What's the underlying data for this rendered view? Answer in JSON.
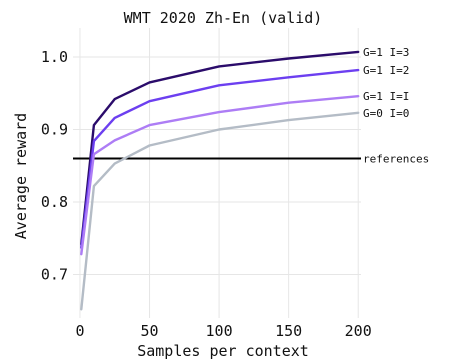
{
  "chart_data": {
    "type": "line",
    "title": "WMT 2020 Zh-En (valid)",
    "xlabel": "Samples per context",
    "ylabel": "Average reward",
    "x": [
      1,
      10,
      25,
      50,
      100,
      150,
      200
    ],
    "xlim": [
      -5,
      202
    ],
    "ylim": [
      0.64,
      1.04
    ],
    "xticks": [
      0,
      50,
      100,
      150,
      200
    ],
    "yticks": [
      0.7,
      0.8,
      0.9,
      1.0
    ],
    "xtick_labels": [
      "0",
      "50",
      "100",
      "150",
      "200"
    ],
    "ytick_labels": [
      "0.7",
      "0.8",
      "0.9",
      "1.0"
    ],
    "grid": true,
    "series": [
      {
        "name": "G=1 I=3",
        "color": "#2b0c6b",
        "values": [
          0.742,
          0.906,
          0.942,
          0.965,
          0.987,
          0.998,
          1.007
        ]
      },
      {
        "name": "G=1 I=2",
        "color": "#6c3ff0",
        "values": [
          0.737,
          0.884,
          0.916,
          0.939,
          0.961,
          0.972,
          0.982
        ]
      },
      {
        "name": "G=1 I=I",
        "color": "#ad7df5",
        "values": [
          0.728,
          0.866,
          0.885,
          0.906,
          0.924,
          0.937,
          0.946
        ]
      },
      {
        "name": "G=0 I=0",
        "color": "#b4bcc6",
        "values": [
          0.652,
          0.822,
          0.853,
          0.878,
          0.9,
          0.913,
          0.923
        ]
      }
    ],
    "reference": {
      "name": "references",
      "value": 0.86,
      "color": "#000000"
    }
  }
}
